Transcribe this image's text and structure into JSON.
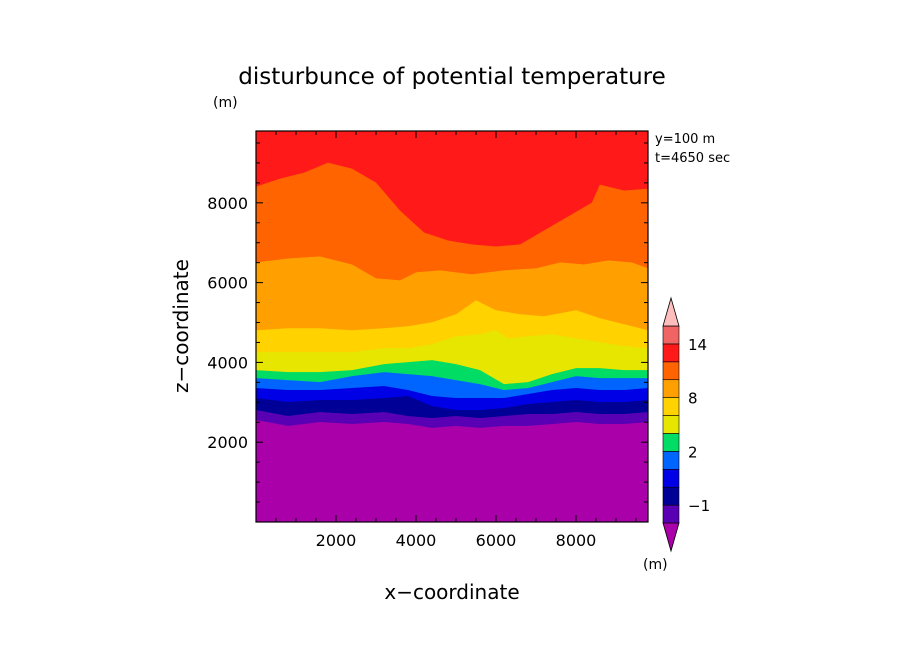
{
  "chart_data": {
    "type": "contour",
    "title": "disturbunce of potential temperature",
    "title_unit": "(m)",
    "xlabel": "x−coordinate",
    "ylabel": "z−coordinate",
    "annotations": [
      "y=100 m",
      "t=4650 sec"
    ],
    "xlim": [
      0,
      9800
    ],
    "ylim": [
      0,
      9800
    ],
    "xticks": [
      2000,
      4000,
      6000,
      8000
    ],
    "yticks": [
      2000,
      4000,
      6000,
      8000
    ],
    "xtick_labels": [
      "2000",
      "4000",
      "6000",
      "8000"
    ],
    "ytick_labels": [
      "2000",
      "4000",
      "6000",
      "8000"
    ],
    "colorbar": {
      "unit": "(m)",
      "labels": [
        "14",
        "8",
        "2",
        "−1"
      ],
      "label_values": [
        14,
        8,
        2,
        -1
      ],
      "levels": [
        -2,
        -1,
        0,
        1,
        2,
        4,
        6,
        8,
        10,
        12,
        14,
        16
      ],
      "colors": [
        "#aa00aa",
        "#5a00b4",
        "#000096",
        "#0000e6",
        "#0064ff",
        "#00dc64",
        "#e6e600",
        "#ffd200",
        "#ffa000",
        "#ff6400",
        "#ff1919",
        "#f06464",
        "#ffbebe"
      ]
    },
    "bands": [
      {
        "color": "#aa00aa",
        "upper": [
          [
            0,
            2550
          ],
          [
            800,
            2400
          ],
          [
            1600,
            2500
          ],
          [
            2400,
            2450
          ],
          [
            3200,
            2500
          ],
          [
            3800,
            2450
          ],
          [
            4400,
            2350
          ],
          [
            5000,
            2400
          ],
          [
            5600,
            2350
          ],
          [
            6200,
            2400
          ],
          [
            6800,
            2400
          ],
          [
            7400,
            2450
          ],
          [
            8000,
            2500
          ],
          [
            8600,
            2450
          ],
          [
            9200,
            2450
          ],
          [
            9800,
            2500
          ]
        ]
      },
      {
        "color": "#5a00b4",
        "upper": [
          [
            0,
            2800
          ],
          [
            800,
            2650
          ],
          [
            1600,
            2750
          ],
          [
            2400,
            2700
          ],
          [
            3200,
            2750
          ],
          [
            3800,
            2650
          ],
          [
            4400,
            2600
          ],
          [
            5000,
            2650
          ],
          [
            5600,
            2600
          ],
          [
            6200,
            2650
          ],
          [
            6800,
            2700
          ],
          [
            7400,
            2700
          ],
          [
            8000,
            2750
          ],
          [
            8600,
            2700
          ],
          [
            9200,
            2700
          ],
          [
            9800,
            2750
          ]
        ]
      },
      {
        "color": "#000096",
        "upper": [
          [
            0,
            3100
          ],
          [
            800,
            3000
          ],
          [
            1600,
            3050
          ],
          [
            2400,
            3050
          ],
          [
            3200,
            3100
          ],
          [
            3800,
            3150
          ],
          [
            4400,
            2900
          ],
          [
            5000,
            2800
          ],
          [
            5600,
            2800
          ],
          [
            6200,
            2850
          ],
          [
            6800,
            2950
          ],
          [
            7400,
            3000
          ],
          [
            8000,
            3050
          ],
          [
            8600,
            3000
          ],
          [
            9200,
            3000
          ],
          [
            9800,
            3050
          ]
        ]
      },
      {
        "color": "#0000e6",
        "upper": [
          [
            0,
            3350
          ],
          [
            800,
            3300
          ],
          [
            1600,
            3300
          ],
          [
            2400,
            3350
          ],
          [
            3200,
            3400
          ],
          [
            3800,
            3300
          ],
          [
            4400,
            3150
          ],
          [
            5000,
            3100
          ],
          [
            5600,
            3100
          ],
          [
            6200,
            3100
          ],
          [
            6800,
            3200
          ],
          [
            7400,
            3300
          ],
          [
            8000,
            3350
          ],
          [
            8600,
            3300
          ],
          [
            9200,
            3300
          ],
          [
            9800,
            3350
          ]
        ]
      },
      {
        "color": "#0064ff",
        "upper": [
          [
            0,
            3600
          ],
          [
            800,
            3550
          ],
          [
            1600,
            3500
          ],
          [
            2400,
            3650
          ],
          [
            3200,
            3750
          ],
          [
            3800,
            3700
          ],
          [
            4400,
            3650
          ],
          [
            5000,
            3550
          ],
          [
            5600,
            3450
          ],
          [
            6200,
            3300
          ],
          [
            6800,
            3350
          ],
          [
            7400,
            3500
          ],
          [
            8000,
            3650
          ],
          [
            8600,
            3600
          ],
          [
            9200,
            3600
          ],
          [
            9800,
            3600
          ]
        ]
      },
      {
        "color": "#00dc64",
        "upper": [
          [
            0,
            3800
          ],
          [
            800,
            3750
          ],
          [
            1600,
            3750
          ],
          [
            2400,
            3800
          ],
          [
            3200,
            3950
          ],
          [
            3800,
            4000
          ],
          [
            4400,
            4050
          ],
          [
            5000,
            3950
          ],
          [
            5600,
            3800
          ],
          [
            6200,
            3450
          ],
          [
            6800,
            3500
          ],
          [
            7400,
            3700
          ],
          [
            8000,
            3850
          ],
          [
            8600,
            3850
          ],
          [
            9200,
            3800
          ],
          [
            9800,
            3800
          ]
        ]
      },
      {
        "color": "#e6e600",
        "upper": [
          [
            0,
            4250
          ],
          [
            800,
            4250
          ],
          [
            1600,
            4250
          ],
          [
            2400,
            4250
          ],
          [
            3200,
            4350
          ],
          [
            3800,
            4350
          ],
          [
            4400,
            4450
          ],
          [
            5000,
            4650
          ],
          [
            5600,
            4700
          ],
          [
            6000,
            4800
          ],
          [
            6300,
            4600
          ],
          [
            6800,
            4650
          ],
          [
            7400,
            4700
          ],
          [
            8000,
            4600
          ],
          [
            8600,
            4500
          ],
          [
            9200,
            4400
          ],
          [
            9800,
            4350
          ]
        ]
      },
      {
        "color": "#ffd200",
        "upper": [
          [
            0,
            4800
          ],
          [
            800,
            4850
          ],
          [
            1600,
            4850
          ],
          [
            2400,
            4800
          ],
          [
            3200,
            4850
          ],
          [
            3800,
            4900
          ],
          [
            4400,
            5000
          ],
          [
            5000,
            5200
          ],
          [
            5500,
            5550
          ],
          [
            6000,
            5300
          ],
          [
            6600,
            5200
          ],
          [
            7200,
            5150
          ],
          [
            8000,
            5300
          ],
          [
            8600,
            5100
          ],
          [
            9200,
            4950
          ],
          [
            9800,
            4800
          ]
        ]
      },
      {
        "color": "#ffa000",
        "upper": [
          [
            0,
            6500
          ],
          [
            800,
            6600
          ],
          [
            1600,
            6650
          ],
          [
            2400,
            6450
          ],
          [
            3000,
            6100
          ],
          [
            3600,
            6050
          ],
          [
            4000,
            6250
          ],
          [
            4600,
            6300
          ],
          [
            5400,
            6200
          ],
          [
            6200,
            6300
          ],
          [
            7000,
            6350
          ],
          [
            7600,
            6500
          ],
          [
            8200,
            6450
          ],
          [
            8800,
            6550
          ],
          [
            9400,
            6500
          ],
          [
            9800,
            6350
          ]
        ]
      },
      {
        "color": "#ff6400",
        "upper": [
          [
            0,
            8400
          ],
          [
            600,
            8600
          ],
          [
            1200,
            8750
          ],
          [
            1800,
            9000
          ],
          [
            2400,
            8850
          ],
          [
            3000,
            8500
          ],
          [
            3600,
            7800
          ],
          [
            4200,
            7250
          ],
          [
            4800,
            7050
          ],
          [
            5400,
            6950
          ],
          [
            6000,
            6900
          ],
          [
            6600,
            6950
          ],
          [
            7200,
            7300
          ],
          [
            7800,
            7650
          ],
          [
            8400,
            8000
          ],
          [
            8600,
            8450
          ],
          [
            9200,
            8300
          ],
          [
            9800,
            8350
          ]
        ]
      },
      {
        "color": "#ff1919",
        "upper": [
          [
            0,
            9800
          ],
          [
            9800,
            9800
          ]
        ]
      }
    ]
  }
}
